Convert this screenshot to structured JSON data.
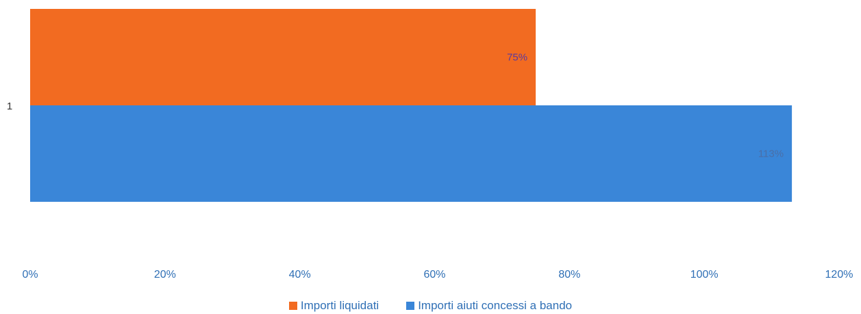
{
  "chart_data": {
    "type": "bar",
    "orientation": "horizontal",
    "categories": [
      "1"
    ],
    "series": [
      {
        "name": "Importi liquidati",
        "values": [
          75
        ],
        "labels": [
          "75%"
        ],
        "color": "#f26b21"
      },
      {
        "name": "Importi aiuti concessi a bando",
        "values": [
          113
        ],
        "labels": [
          "113%"
        ],
        "color": "#3a86d8"
      }
    ],
    "xlim": [
      0,
      120
    ],
    "x_ticks": [
      "0%",
      "20%",
      "40%",
      "60%",
      "80%",
      "100%",
      "120%"
    ],
    "grid": false,
    "legend": "bottom"
  }
}
